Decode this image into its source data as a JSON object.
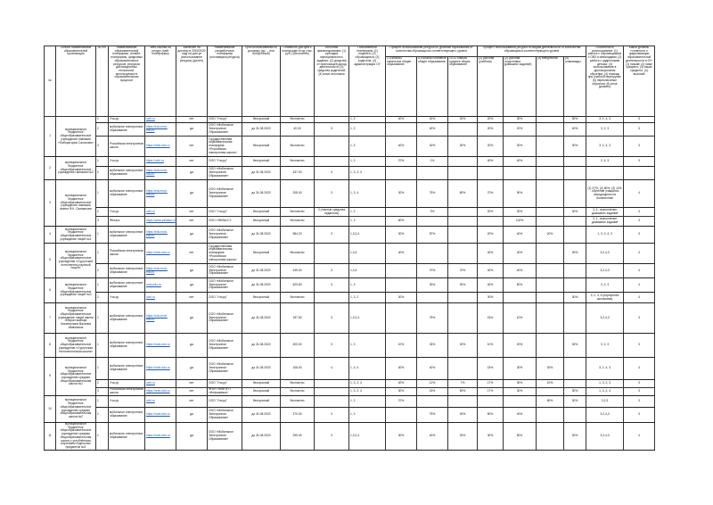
{
  "header": {
    "num": "№",
    "org": "Полное наименование образовательной организации",
    "pp": "№ п/п",
    "platform": "Наименование образовательной платформы, онлайн-платформы, цифровых образовательных ресурсов, ресурсов дистанционных технологий, используемых в образовательном процессе",
    "site": "Web-ссылка на ресурс (сайт платформы)",
    "contract": "Заключен ли договор в 2019/2020 году на доступ (использование ресурса) (да/нет)",
    "developer": "Наименование разработчика платформы (поставщика ресурса)",
    "term": "Срок использования по договору (до ... или бессрочный)",
    "cost": "Стоимость доступа к платформе в год (тыс. руб.) (бесплатно)",
    "source": "Источник финансирования: (1) субсидия муниципального задания; (2) средства от приносящей доход деятельности; (3) средства родителей; (4) иные источники",
    "users": "Пользователи платформы: (1) педагоги; (2) обучающиеся; (3) родители; (4) администрация ОУ",
    "levels_group": "Процент использования ресурса по уровням образования от количества обучающихся соответствующего уровня",
    "levels": [
      "1-4 классы начальное общее образование",
      "5-9 классы основное общее образование",
      "10-11 классы среднее общее образование"
    ],
    "activity_group": "Процент использования ресурса по видам деятельности от количества обучающихся соответствующего уровня",
    "activities": [
      "(1) урочная (учебная)",
      "(2) урочная (подготовка домашних заданий)",
      "(3) внеурочная",
      "(4) олимпиады"
    ],
    "features": "Особенности использования: (1) работа с обучающимися с ОВЗ и инвалидами; (2) работа с одаренными детьми; (3) использование в дистанционном обучении; (4) помощь при учебной перегрузке; (5) переключение обучения; (6) иное (указать)",
    "level": "Какой уровень готовности к цифровизации образовательной деятельности в ОУ: (1) низкий; (2) ниже среднего; (3) выше среднего; (4) высокий"
  },
  "orgs": [
    {
      "num": "1",
      "name": "муниципальное бюджетное общеобразовательное учреждение гимназия «Лаборатория Салахова»",
      "rows": [
        {
          "n": "1",
          "platform": "Учи.ру",
          "site": "uchi.ru",
          "contract": "нет",
          "developer": "ООО \"Учи.ру\"",
          "term": "бессрочный",
          "cost": "бесплатно",
          "source": "",
          "users": "1, 3",
          "l": [
            "40%",
            "40%",
            "30%"
          ],
          "a": [
            "20%",
            "30%",
            "",
            "30%"
          ],
          "features": "3, 2, 4, 3",
          "level": "3"
        },
        {
          "n": "2",
          "platform": "мобильное электронное образование",
          "site": "https://edu.mob-edu.ru",
          "contract": "да",
          "developer": "ООО «Мобильное Электронное Образование»",
          "term": "до 31.08.2020",
          "cost": "40.00",
          "source": "3",
          "users": "1, 3",
          "l": [
            "",
            "40%",
            ""
          ],
          "a": [
            "20%",
            "20%",
            "",
            "40%"
          ],
          "features": "3, 2, 3",
          "level": "3"
        },
        {
          "n": "3",
          "platform": "Российская электронная школа",
          "site": "https://resh.edu.ru",
          "contract": "нет",
          "developer": "Государственная образовательная платформа «Российская электронная школа»",
          "term": "бессрочный",
          "cost": "бесплатно",
          "source": "",
          "users": "1, 3",
          "l": [
            "40%",
            "40%",
            "30%"
          ],
          "a": [
            "20%",
            "30%",
            "",
            "30%"
          ],
          "features": "3, 2, 4, 3",
          "level": "3"
        }
      ]
    },
    {
      "num": "2",
      "name": "муниципальное бюджетное общеобразовательное учреждение гимназия №2",
      "rows": [
        {
          "n": "1",
          "platform": "Учи.ру",
          "site": "https://uchi.ru",
          "contract": "нет",
          "developer": "ООО \"Учи.ру\"",
          "term": "бессрочный",
          "cost": "бесплатно",
          "source": "",
          "users": "1, 3",
          "l": [
            "70%",
            "1%",
            ""
          ],
          "a": [
            "40%",
            "40%",
            "",
            ""
          ],
          "features": "2, 4, 3",
          "level": "3"
        },
        {
          "n": "2",
          "platform": "мобильное электронное образование",
          "site": "https://edu.mob-edu.ru",
          "contract": "да",
          "developer": "ООО «Мобильное Электронное Образование»",
          "term": "до 31.08.2020",
          "cost": "437.00",
          "source": "3",
          "users": "1, 3, 2, 4",
          "l": [
            "",
            "",
            ""
          ],
          "a": [
            "",
            "",
            "",
            ""
          ],
          "features": "",
          "level": ""
        }
      ]
    },
    {
      "num": "3",
      "name": "муниципальное бюджетное общеобразовательное учреждение гимназия имени Ф.К. Салманова",
      "rows": [
        {
          "n": "1",
          "platform": "мобильное электронное образование",
          "site": "https://edu.mob-edu.ru",
          "contract": "да",
          "developer": "ООО «Мобильное Электронное Образование»",
          "term": "до 31.08.2020",
          "cost": "208.40",
          "source": "3",
          "users": "1, 3, 4",
          "l": [
            "30%",
            "75%",
            "80%"
          ],
          "a": [
            "70%",
            "90%",
            "",
            ""
          ],
          "features": "(1) 27%; (2) 80%; (3) 12% - обучение учащихся, находящихся на больничном",
          "level": "4"
        },
        {
          "n": "2",
          "platform": "Учи.ру",
          "site": "uchi.ru",
          "contract": "нет",
          "developer": "ООО \"Учи.ру\"",
          "term": "бессрочный",
          "cost": "бесплатно",
          "source": "3 (личные средства педагогов)",
          "users": "1, 3",
          "l": [
            "",
            "3%",
            ""
          ],
          "a": [
            "20%",
            "30%",
            "",
            "30%"
          ],
          "features": "3, 4 - выполнение домашних заданий",
          "level": "3"
        },
        {
          "n": "3",
          "platform": "ЯКласс",
          "site": "https://www.yaklass.ru",
          "contract": "нет",
          "developer": "ООО «ЯКЛАСС»",
          "term": "бессрочный",
          "cost": "бесплатно",
          "source": "",
          "users": "1, 3",
          "l": [
            "60%",
            "",
            ""
          ],
          "a": [
            "",
            "100%",
            "",
            ""
          ],
          "features": "3, 4 - выполнение домашних заданий",
          "level": "3"
        }
      ]
    },
    {
      "num": "4",
      "name": "муниципальное бюджетное общеобразовательное учреждение лицей №1",
      "rows": [
        {
          "n": "1",
          "platform": "мобильное электронное образование",
          "site": "https://edu.mob-edu.ru",
          "contract": "да",
          "developer": "ООО «Мобильное Электронное Образование»",
          "term": "до 31.08.2020",
          "cost": "584.20",
          "source": "3",
          "users": "1,3,2,4",
          "l": [
            "30%",
            "87%",
            ""
          ],
          "a": [
            "20%",
            "40%",
            "20%",
            ""
          ],
          "features": "1, 3, 2, 4, 3",
          "level": "3"
        }
      ]
    },
    {
      "num": "5",
      "name": "муниципальное бюджетное общеобразовательное учреждение «Сургутский естественно-научный лицей»",
      "rows": [
        {
          "n": "1",
          "platform": "Российская электронная школа",
          "site": "https://resh.edu.ru",
          "contract": "нет",
          "developer": "Государственная образовательная платформа «Российская электронная школа»",
          "term": "бессрочный",
          "cost": "бесплатно",
          "source": "",
          "users": "1,3,4",
          "l": [
            "40%",
            "",
            ""
          ],
          "a": [
            "40%",
            "40%",
            "",
            "30%"
          ],
          "features": "3,2,4,3",
          "level": "4"
        },
        {
          "n": "2",
          "platform": "мобильное электронное образование",
          "site": "https://edu.mob-edu.ru",
          "contract": "да",
          "developer": "ООО «Мобильное Электронное Образование»",
          "term": "до 31.08.2020",
          "cost": "249.00",
          "source": "3",
          "users": "1,3,4",
          "l": [
            "",
            "70%",
            "70%"
          ],
          "a": [
            "40%",
            "40%",
            "",
            ""
          ],
          "features": "3,2,4,3",
          "level": "4"
        }
      ]
    },
    {
      "num": "6",
      "name": "муниципальное бюджетное общеобразовательное учреждение лицей №3",
      "rows": [
        {
          "n": "1",
          "platform": "мобильное электронное образование",
          "site": "mob-edu.ru",
          "contract": "да",
          "developer": "ООО «Мобильное Электронное Образование»",
          "term": "до 31.08.2020",
          "cost": "529.83",
          "source": "3",
          "users": "1, 3",
          "l": [
            "",
            "30%",
            "30%"
          ],
          "a": [
            "40%",
            "50%",
            "",
            ""
          ],
          "features": "3, 2, 3",
          "level": "4"
        },
        {
          "n": "2",
          "platform": "Учи.ру",
          "site": "uchi.ru",
          "contract": "нет",
          "developer": "ООО \"Учи.ру\"",
          "term": "бессрочный",
          "cost": "бесплатно",
          "source": "",
          "users": "1, 3, 2",
          "l": [
            "30%",
            "",
            ""
          ],
          "a": [
            "30%",
            "",
            "",
            "30%"
          ],
          "features": "3, 2, 4, 6 (портфолио школьника)",
          "level": "4"
        }
      ]
    },
    {
      "num": "7",
      "name": "муниципальное бюджетное общеобразовательное учреждение лицей имени генерал-майора Хисматулина Василия Ивановича",
      "rows": [
        {
          "n": "1",
          "platform": "мобильное электронное образование",
          "site": "https://edu.mob-edu.ru",
          "contract": "да",
          "developer": "ООО «Мобильное Электронное Образование»",
          "term": "до 31.08.2020",
          "cost": "197.50",
          "source": "3",
          "users": "1,3,2,4",
          "l": [
            "",
            "75%",
            ""
          ],
          "a": [
            "15%",
            "10%",
            "",
            ""
          ],
          "features": "3,2,4,3",
          "level": "3"
        }
      ]
    },
    {
      "num": "8",
      "name": "муниципальное бюджетное общеобразовательное учреждение «Сургутская технологическая школа»",
      "rows": [
        {
          "n": "1",
          "platform": "мобильное электронное образование",
          "site": "https://mob-edu.ru",
          "contract": "да",
          "developer": "ООО «Мобильное Электронное Образование»",
          "term": "до 31.08.2020",
          "cost": "400.00",
          "source": "3",
          "users": "1, 3",
          "l": [
            "10%",
            "33%",
            "30%"
          ],
          "a": [
            "10%",
            "20%",
            "",
            "30%"
          ],
          "features": "3, 2, 3",
          "level": "3"
        }
      ]
    },
    {
      "num": "9",
      "name": "муниципальное бюджетное общеобразовательное учреждение средняя общеобразовательная школа №1",
      "rows": [
        {
          "n": "1",
          "platform": "мобильное электронное образование",
          "site": "https://mob-edu.ru",
          "contract": "да",
          "developer": "ООО «Мобильное Электронное Образование»",
          "term": "до 31.08.2020",
          "cost": "108.00",
          "source": "4",
          "users": "1, 3, 4",
          "l": [
            "40%",
            "40%",
            ""
          ],
          "a": [
            "15%",
            "30%",
            "30%",
            ""
          ],
          "features": "3, 2, 4, 3",
          "level": "4"
        },
        {
          "n": "2",
          "platform": "Учи.ру",
          "site": "uchi.ru",
          "contract": "нет",
          "developer": "ООО \"Учи.ру\"",
          "term": "бессрочный",
          "cost": "бесплатно",
          "source": "",
          "users": "1, 3, 2, 4",
          "l": [
            "40%",
            "12%",
            "7%"
          ],
          "a": [
            "17%",
            "30%",
            "10%",
            ""
          ],
          "features": "1, 3, 2, 3",
          "level": "3"
        },
        {
          "n": "3",
          "platform": "Российская электронная школа",
          "site": "https://resh.edu.ru",
          "contract": "нет",
          "developer": "ФГАУ ГНИИ ИТТ «Информика»",
          "term": "бессрочный",
          "cost": "бесплатно",
          "source": "",
          "users": "1, 3, 2, 4",
          "l": [
            "30%",
            "15%",
            "50%"
          ],
          "a": [
            "17%",
            "30%",
            "",
            "30%"
          ],
          "features": "1, 3, 2, 4",
          "level": "3"
        }
      ]
    },
    {
      "num": "10",
      "name": "муниципальное бюджетное общеобразовательное учреждение средняя общеобразовательная школа №2",
      "rows": [
        {
          "n": "1",
          "platform": "Учи.ру",
          "site": "uchi.ru",
          "contract": "нет",
          "developer": "ООО \"Учи.ру\"",
          "term": "бессрочный",
          "cost": "бесплатно",
          "source": "",
          "users": "1, 3",
          "l": [
            "70%",
            "",
            ""
          ],
          "a": [
            "",
            "",
            "80%",
            "30%"
          ],
          "features": "3,2,3",
          "level": "3"
        },
        {
          "n": "2",
          "platform": "мобильное электронное образование",
          "site": "https://mob-edu.ru",
          "contract": "да",
          "developer": "ООО «Мобильное Электронное Образование»",
          "term": "до 31.08.2020",
          "cost": "370.00",
          "source": "3",
          "users": "1, 3",
          "l": [
            "",
            "75%",
            "30%"
          ],
          "a": [
            "50%",
            "40%",
            "",
            ""
          ],
          "features": "3,2,4,3",
          "level": "3"
        }
      ]
    },
    {
      "num": "11",
      "name": "муниципальное бюджетное общеобразовательное учреждение средняя общеобразовательная школа с углублённым изучением отдельных предметов №3",
      "rows": [
        {
          "n": "1",
          "platform": "мобильное электронное образование",
          "site": "https://mob-edu.ru",
          "contract": "да",
          "developer": "ООО «Мобильное Электронное Образование»",
          "term": "до 31.08.2020",
          "cost": "299.40",
          "source": "3",
          "users": "1,3,2,4",
          "l": [
            "30%",
            "40%",
            "30%"
          ],
          "a": [
            "30%",
            "50%",
            "",
            "30%"
          ],
          "features": "3,2,4,3",
          "level": "4"
        }
      ]
    }
  ]
}
